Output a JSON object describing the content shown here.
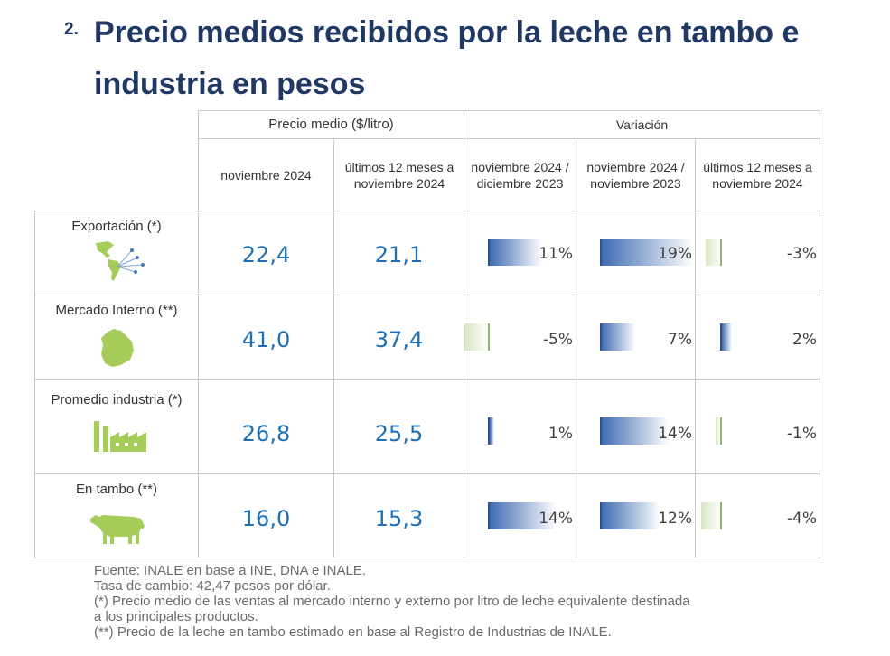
{
  "title": {
    "number": "2.",
    "text": "Precio medios recibidos por la leche en tambo e industria en pesos"
  },
  "header": {
    "group_price": "Precio medio ($/litro)",
    "group_variation": "Variación",
    "col_nov2024": "noviembre 2024",
    "col_12m": "últimos 12 meses a noviembre  2024",
    "col_var_nov_dic": "noviembre 2024 / diciembre 2023",
    "col_var_nov_nov": "noviembre 2024 / noviembre 2023",
    "col_var_12m": "últimos 12 meses a noviembre 2024"
  },
  "rows": [
    {
      "label": "Exportación (*)",
      "icon": "americas-map-icon",
      "price_nov": "22,4",
      "price_12m": "21,1",
      "var1": "11%",
      "var1_value": 11,
      "var2": "19%",
      "var2_value": 19,
      "var3": "-3%",
      "var3_value": -3
    },
    {
      "label": "Mercado Interno (**)",
      "icon": "uruguay-map-icon",
      "price_nov": "41,0",
      "price_12m": "37,4",
      "var1": "-5%",
      "var1_value": -5,
      "var2": "7%",
      "var2_value": 7,
      "var3": "2%",
      "var3_value": 2
    },
    {
      "label": "Promedio industria (*)",
      "icon": "factory-icon",
      "price_nov": "26,8",
      "price_12m": "25,5",
      "var1": "1%",
      "var1_value": 1,
      "var2": "14%",
      "var2_value": 14,
      "var3": "-1%",
      "var3_value": -1
    },
    {
      "label": "En tambo (**)",
      "icon": "cow-icon",
      "price_nov": "16,0",
      "price_12m": "15,3",
      "var1": "14%",
      "var1_value": 14,
      "var2": "12%",
      "var2_value": 12,
      "var3": "-4%",
      "var3_value": -4
    }
  ],
  "footer": {
    "line1": "Fuente: INALE en base a INE, DNA e INALE.",
    "line2": "Tasa de cambio: 42,47 pesos por dólar.",
    "line3": "(*) Precio medio de las ventas al mercado interno y externo por litro de leche equivalente destinada",
    "line4": "a los principales productos.",
    "line5": "(**) Precio de la leche en tambo estimado en base al Registro de Industrias de INALE."
  },
  "colors": {
    "title": "#1f3864",
    "value": "#1e6fb4",
    "bar_positive": "#3f6cb3",
    "bar_negative": "#d6e6c0",
    "icon_green": "#a6cc5a"
  }
}
